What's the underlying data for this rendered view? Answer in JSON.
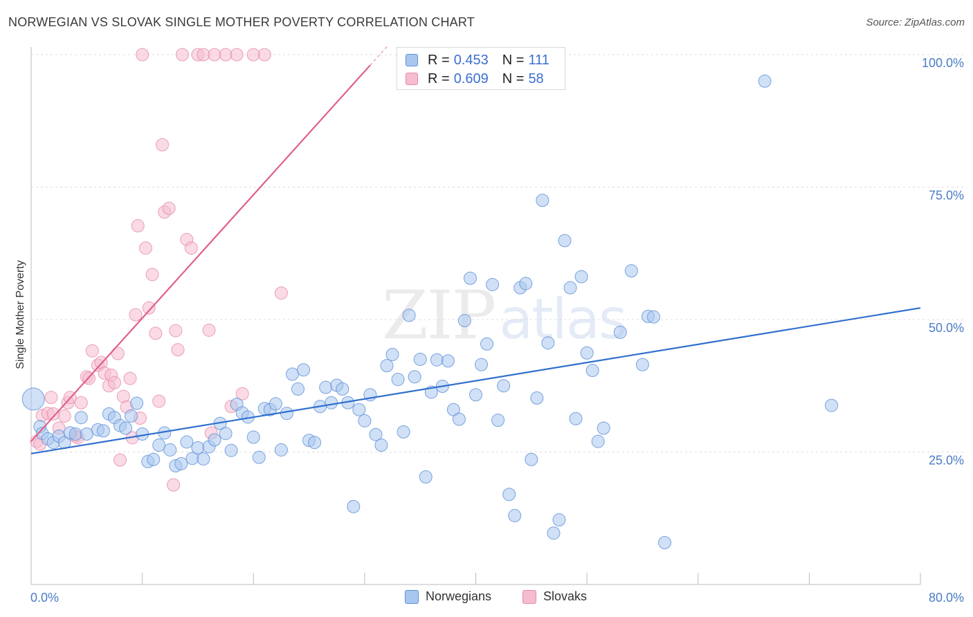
{
  "header": {
    "title": "NORWEGIAN VS SLOVAK SINGLE MOTHER POVERTY CORRELATION CHART",
    "source": "Source: ZipAtlas.com"
  },
  "watermark": {
    "zip": "ZIP",
    "atlas": "atlas"
  },
  "legend": {
    "rows": [
      {
        "r_label": "R =",
        "r_value": "0.453",
        "n_label": "N =",
        "n_value": "111"
      },
      {
        "r_label": "R =",
        "r_value": "0.609",
        "n_label": "N =",
        "n_value": "58"
      }
    ]
  },
  "bottom_legend": {
    "a": "Norwegians",
    "b": "Slovaks"
  },
  "colors": {
    "blue_fill": "#a9c6ef",
    "blue_stroke": "#5b8fd6",
    "blue_line": "#2f6fce",
    "pink_fill": "#f6bcd0",
    "pink_stroke": "#e58aa8",
    "pink_line": "#e0608a",
    "grid": "#dcdcdc",
    "tick_text": "#4a7cc7"
  },
  "chart_data": {
    "type": "scatter",
    "title": "NORWEGIAN VS SLOVAK SINGLE MOTHER POVERTY CORRELATION CHART",
    "xlabel": "",
    "ylabel": "Single Mother Poverty",
    "xlim": [
      0,
      80
    ],
    "ylim": [
      0,
      100
    ],
    "x_tick_labels": [
      "0.0%",
      "80.0%"
    ],
    "y_ticks": [
      25,
      50,
      75,
      100
    ],
    "y_tick_labels": [
      "25.0%",
      "50.0%",
      "75.0%",
      "100.0%"
    ],
    "grid": true,
    "legend_position": "top-center",
    "series": [
      {
        "name": "Norwegians",
        "color": "#a9c6ef",
        "trend": {
          "x0": 0,
          "y0": 24.7,
          "x1": 80,
          "y1": 52.2
        },
        "points": [
          [
            0.2,
            35.0
          ],
          [
            0.8,
            29.8
          ],
          [
            1.0,
            28.5
          ],
          [
            1.5,
            27.5
          ],
          [
            2.0,
            26.8
          ],
          [
            2.5,
            28.0
          ],
          [
            3.0,
            26.8
          ],
          [
            3.5,
            28.6
          ],
          [
            4.0,
            28.4
          ],
          [
            4.5,
            31.5
          ],
          [
            5.0,
            28.4
          ],
          [
            6.0,
            29.2
          ],
          [
            6.5,
            29.0
          ],
          [
            7.0,
            32.2
          ],
          [
            7.5,
            31.5
          ],
          [
            8.0,
            30.0
          ],
          [
            8.5,
            29.5
          ],
          [
            9.0,
            31.8
          ],
          [
            9.5,
            34.2
          ],
          [
            10.0,
            28.4
          ],
          [
            10.5,
            23.2
          ],
          [
            11.0,
            23.6
          ],
          [
            11.5,
            26.3
          ],
          [
            12.0,
            28.6
          ],
          [
            12.5,
            25.4
          ],
          [
            13.0,
            22.4
          ],
          [
            13.5,
            22.8
          ],
          [
            14.0,
            26.9
          ],
          [
            14.5,
            23.8
          ],
          [
            15.0,
            25.8
          ],
          [
            15.5,
            23.7
          ],
          [
            16.0,
            26.0
          ],
          [
            16.5,
            27.3
          ],
          [
            17.0,
            30.4
          ],
          [
            17.5,
            28.5
          ],
          [
            18.0,
            25.3
          ],
          [
            18.5,
            34.0
          ],
          [
            19.0,
            32.4
          ],
          [
            19.5,
            31.6
          ],
          [
            20.0,
            27.8
          ],
          [
            20.5,
            24.0
          ],
          [
            21.0,
            33.2
          ],
          [
            21.5,
            33.0
          ],
          [
            22.0,
            34.1
          ],
          [
            22.5,
            25.4
          ],
          [
            23.0,
            32.3
          ],
          [
            23.5,
            39.7
          ],
          [
            24.0,
            36.9
          ],
          [
            24.5,
            40.5
          ],
          [
            25.0,
            27.2
          ],
          [
            25.5,
            26.8
          ],
          [
            26.0,
            33.6
          ],
          [
            26.5,
            37.2
          ],
          [
            27.0,
            34.3
          ],
          [
            27.5,
            37.6
          ],
          [
            28.0,
            36.9
          ],
          [
            28.5,
            34.3
          ],
          [
            29.0,
            14.7
          ],
          [
            29.5,
            33.0
          ],
          [
            30.0,
            30.9
          ],
          [
            30.5,
            35.8
          ],
          [
            31.0,
            28.3
          ],
          [
            31.5,
            26.3
          ],
          [
            32.0,
            41.3
          ],
          [
            32.5,
            43.4
          ],
          [
            33.0,
            38.7
          ],
          [
            33.5,
            28.8
          ],
          [
            34.0,
            50.8
          ],
          [
            34.5,
            39.2
          ],
          [
            35.0,
            42.5
          ],
          [
            35.5,
            20.3
          ],
          [
            36.0,
            36.3
          ],
          [
            36.5,
            42.4
          ],
          [
            37.0,
            37.4
          ],
          [
            37.5,
            42.2
          ],
          [
            38.0,
            33.0
          ],
          [
            38.5,
            31.2
          ],
          [
            39.0,
            49.8
          ],
          [
            39.5,
            57.8
          ],
          [
            40.0,
            35.8
          ],
          [
            40.5,
            41.5
          ],
          [
            41.0,
            45.4
          ],
          [
            41.5,
            56.6
          ],
          [
            42.0,
            31.0
          ],
          [
            42.5,
            37.5
          ],
          [
            43.0,
            17.0
          ],
          [
            43.5,
            13.0
          ],
          [
            44.0,
            56.0
          ],
          [
            44.5,
            56.8
          ],
          [
            45.0,
            23.6
          ],
          [
            45.5,
            35.2
          ],
          [
            46.0,
            72.5
          ],
          [
            46.5,
            45.6
          ],
          [
            47.0,
            9.7
          ],
          [
            47.5,
            12.2
          ],
          [
            48.0,
            64.9
          ],
          [
            48.5,
            56.0
          ],
          [
            49.0,
            31.3
          ],
          [
            49.5,
            58.1
          ],
          [
            50.0,
            43.7
          ],
          [
            50.5,
            40.4
          ],
          [
            51.0,
            27.0
          ],
          [
            51.5,
            29.5
          ],
          [
            53.0,
            47.6
          ],
          [
            54.0,
            59.2
          ],
          [
            55.0,
            41.5
          ],
          [
            55.5,
            50.6
          ],
          [
            57.0,
            7.9
          ],
          [
            66.0,
            95.0
          ],
          [
            72.0,
            33.8
          ],
          [
            56.0,
            50.5
          ]
        ]
      },
      {
        "name": "Slovaks",
        "color": "#f6bcd0",
        "trend": {
          "x0": 0,
          "y0": 27.0,
          "x1": 30.5,
          "y1": 98.0
        },
        "points": [
          [
            0.5,
            27.0
          ],
          [
            0.8,
            26.5
          ],
          [
            1.0,
            31.9
          ],
          [
            1.5,
            32.3
          ],
          [
            1.8,
            35.3
          ],
          [
            2.0,
            32.2
          ],
          [
            2.5,
            29.5
          ],
          [
            3.0,
            31.8
          ],
          [
            3.3,
            34.3
          ],
          [
            3.5,
            35.3
          ],
          [
            4.0,
            28.0
          ],
          [
            4.2,
            27.7
          ],
          [
            4.5,
            34.3
          ],
          [
            5.0,
            39.2
          ],
          [
            5.2,
            38.9
          ],
          [
            5.5,
            44.1
          ],
          [
            6.0,
            41.4
          ],
          [
            6.3,
            41.9
          ],
          [
            6.6,
            39.9
          ],
          [
            7.0,
            37.5
          ],
          [
            7.2,
            39.5
          ],
          [
            7.5,
            38.1
          ],
          [
            7.8,
            43.6
          ],
          [
            8.0,
            23.5
          ],
          [
            8.3,
            35.5
          ],
          [
            8.6,
            33.5
          ],
          [
            8.9,
            38.9
          ],
          [
            9.1,
            27.7
          ],
          [
            9.4,
            50.9
          ],
          [
            9.6,
            67.7
          ],
          [
            9.8,
            31.4
          ],
          [
            10.0,
            100.0
          ],
          [
            10.3,
            63.5
          ],
          [
            10.6,
            52.2
          ],
          [
            10.9,
            58.5
          ],
          [
            11.2,
            47.4
          ],
          [
            11.5,
            34.6
          ],
          [
            11.8,
            83.0
          ],
          [
            12.0,
            70.3
          ],
          [
            12.4,
            71.0
          ],
          [
            12.8,
            18.8
          ],
          [
            13.2,
            44.3
          ],
          [
            13.6,
            100.0
          ],
          [
            14.0,
            65.1
          ],
          [
            14.4,
            63.5
          ],
          [
            15.0,
            100.0
          ],
          [
            15.5,
            100.0
          ],
          [
            16.0,
            48.0
          ],
          [
            16.5,
            100.0
          ],
          [
            17.5,
            100.0
          ],
          [
            18.0,
            33.6
          ],
          [
            18.5,
            100.0
          ],
          [
            19.0,
            36.0
          ],
          [
            20.0,
            100.0
          ],
          [
            21.0,
            100.0
          ],
          [
            22.5,
            55.0
          ],
          [
            13.0,
            47.9
          ],
          [
            16.2,
            28.6
          ]
        ]
      }
    ]
  }
}
